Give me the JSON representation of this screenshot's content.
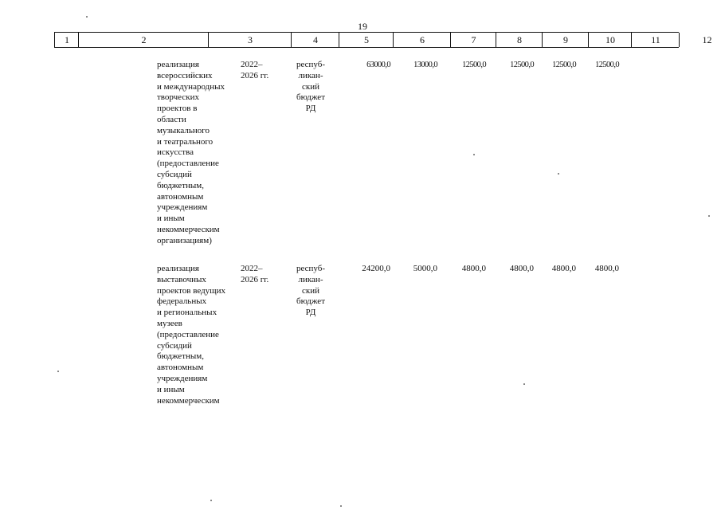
{
  "page_number": "19",
  "table": {
    "header": [
      "1",
      "2",
      "3",
      "4",
      "5",
      "6",
      "7",
      "8",
      "9",
      "10",
      "11",
      "12"
    ],
    "rows": [
      {
        "description": [
          "реализация",
          "всероссийских",
          "и международных",
          "творческих",
          "проектов в",
          "области",
          "музыкального",
          "и театрального",
          "искусства",
          "(предоставление",
          "субсидий",
          "бюджетным,",
          "автономным",
          "учреждениям",
          "и иным",
          "некоммерческим",
          "организациям)"
        ],
        "period": [
          "2022–",
          "2026 гг."
        ],
        "source": [
          "респуб-",
          "ликан-",
          "ский",
          "бюджет",
          "РД"
        ],
        "values": [
          "63000,0",
          "13000,0",
          "12500,0",
          "12500,0",
          "12500,0",
          "12500,0"
        ]
      },
      {
        "description": [
          "реализация",
          "выставочных",
          "проектов ведущих",
          "федеральных",
          "и региональных",
          "музеев",
          "(предоставление",
          "субсидий",
          "бюджетным,",
          "автономным",
          "учреждениям",
          "и иным",
          "некоммерческим"
        ],
        "period": [
          "2022–",
          "2026 гг."
        ],
        "source": [
          "респуб-",
          "ликан-",
          "ский",
          "бюджет",
          "РД"
        ],
        "values": [
          "24200,0",
          "5000,0",
          "4800,0",
          "4800,0",
          "4800,0",
          "4800,0"
        ]
      }
    ]
  }
}
